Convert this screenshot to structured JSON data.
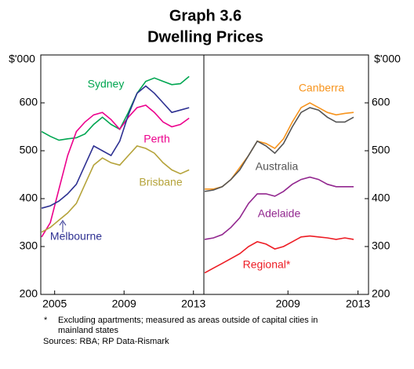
{
  "title": "Graph 3.6",
  "subtitle": "Dwelling Prices",
  "footnote": {
    "marker": "*",
    "lines": [
      "Excluding apartments; measured as areas outside of capital cities in",
      "mainland states"
    ]
  },
  "sources": "Sources: RBA; RP Data-Rismark",
  "chart_data": [
    {
      "type": "line",
      "y_unit": "$'000",
      "xlim": [
        2004.2,
        2013.6
      ],
      "xticks": [
        2005,
        2009,
        2013
      ],
      "ylim": [
        200,
        700
      ],
      "yticks": [
        200,
        300,
        400,
        500,
        600
      ],
      "x": [
        2004.25,
        2004.75,
        2005.25,
        2005.75,
        2006.25,
        2006.75,
        2007.25,
        2007.75,
        2008.25,
        2008.75,
        2009.25,
        2009.75,
        2010.25,
        2010.75,
        2011.25,
        2011.75,
        2012.25,
        2012.75
      ],
      "series": [
        {
          "name": "Sydney",
          "color": "#00a651",
          "values": [
            540,
            530,
            522,
            525,
            527,
            535,
            555,
            570,
            555,
            545,
            580,
            620,
            645,
            652,
            645,
            638,
            640,
            655
          ]
        },
        {
          "name": "Perth",
          "color": "#ec008c",
          "values": [
            320,
            350,
            420,
            490,
            540,
            560,
            575,
            580,
            565,
            545,
            570,
            590,
            595,
            580,
            560,
            550,
            555,
            568
          ]
        },
        {
          "name": "Melbourne",
          "color": "#2e3192",
          "values": [
            380,
            385,
            395,
            410,
            430,
            470,
            510,
            500,
            490,
            520,
            575,
            620,
            635,
            620,
            600,
            580,
            585,
            590
          ]
        },
        {
          "name": "Brisbane",
          "color": "#b5a33a",
          "values": [
            330,
            340,
            355,
            370,
            390,
            430,
            470,
            485,
            475,
            470,
            490,
            510,
            505,
            495,
            475,
            460,
            452,
            460
          ]
        }
      ]
    },
    {
      "type": "line",
      "y_unit": "$'000",
      "xlim": [
        2004.2,
        2013.6
      ],
      "xticks": [
        2009,
        2013
      ],
      "ylim": [
        200,
        700
      ],
      "yticks": [
        200,
        300,
        400,
        500,
        600
      ],
      "x": [
        2004.25,
        2004.75,
        2005.25,
        2005.75,
        2006.25,
        2006.75,
        2007.25,
        2007.75,
        2008.25,
        2008.75,
        2009.25,
        2009.75,
        2010.25,
        2010.75,
        2011.25,
        2011.75,
        2012.25,
        2012.75
      ],
      "series": [
        {
          "name": "Canberra",
          "color": "#f7941d",
          "values": [
            420,
            420,
            425,
            440,
            465,
            490,
            520,
            515,
            505,
            525,
            560,
            590,
            600,
            590,
            580,
            575,
            578,
            580
          ]
        },
        {
          "name": "Australia",
          "color": "#555555",
          "values": [
            415,
            418,
            425,
            440,
            460,
            490,
            520,
            510,
            495,
            515,
            550,
            580,
            590,
            585,
            570,
            560,
            560,
            570
          ]
        },
        {
          "name": "Adelaide",
          "color": "#92278f",
          "values": [
            315,
            318,
            325,
            340,
            360,
            390,
            410,
            410,
            405,
            415,
            430,
            440,
            445,
            440,
            430,
            425,
            425,
            425
          ]
        },
        {
          "name": "Regional*",
          "color": "#ed1c24",
          "values": [
            245,
            255,
            265,
            275,
            285,
            300,
            310,
            305,
            295,
            300,
            310,
            320,
            322,
            320,
            318,
            315,
            318,
            315
          ]
        }
      ]
    }
  ]
}
